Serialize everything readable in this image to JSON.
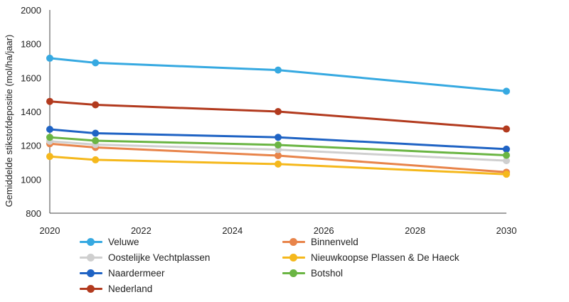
{
  "chart_data": {
    "type": "line",
    "title": "",
    "xlabel": "",
    "ylabel": "Gemiddelde stikstofdepositie (mol/ha/jaar)",
    "xlim": [
      2020,
      2030
    ],
    "ylim": [
      800,
      2000
    ],
    "xticks": [
      2020,
      2022,
      2024,
      2026,
      2028,
      2030
    ],
    "yticks": [
      800,
      1000,
      1200,
      1400,
      1600,
      1800,
      2000
    ],
    "grid": false,
    "legend_position": "bottom",
    "x": [
      2020,
      2021,
      2025,
      2030
    ],
    "series": [
      {
        "name": "Veluwe",
        "color": "#36a9e1",
        "values": [
          1715,
          1688,
          1645,
          1520
        ]
      },
      {
        "name": "Binnenveld",
        "color": "#e8844a",
        "values": [
          1210,
          1188,
          1140,
          1042
        ]
      },
      {
        "name": "Oostelijke Vechtplassen",
        "color": "#cfcfcf",
        "values": [
          1225,
          1205,
          1175,
          1110
        ]
      },
      {
        "name": "Nieuwkoopse Plassen & De Haeck",
        "color": "#f5b81c",
        "values": [
          1135,
          1115,
          1090,
          1030
        ]
      },
      {
        "name": "Naardermeer",
        "color": "#1f63c4",
        "values": [
          1295,
          1272,
          1248,
          1178
        ]
      },
      {
        "name": "Botshol",
        "color": "#6ab543",
        "values": [
          1248,
          1228,
          1203,
          1142
        ]
      },
      {
        "name": "Nederland",
        "color": "#b23a1e",
        "values": [
          1460,
          1440,
          1400,
          1297
        ]
      }
    ]
  }
}
